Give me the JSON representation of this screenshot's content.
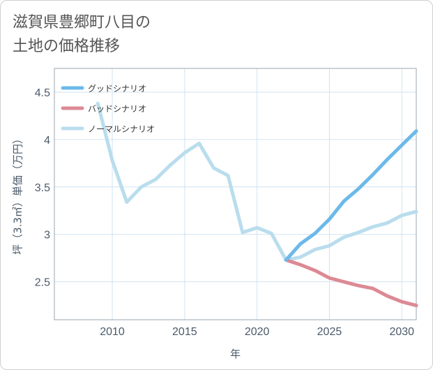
{
  "title": {
    "line1": "滋賀県豊郷町八目の",
    "line2": "土地の価格推移"
  },
  "chart_data": {
    "type": "line",
    "xlabel": "年",
    "ylabel": "坪（3.3㎡）単価（万円）",
    "xlim": [
      2006,
      2031
    ],
    "ylim": [
      2.1,
      4.75
    ],
    "x_ticks": [
      2010,
      2015,
      2020,
      2025,
      2030
    ],
    "y_ticks": [
      2.5,
      3,
      3.5,
      4,
      4.5
    ],
    "x_tick_labels": [
      "2010",
      "2015",
      "2020",
      "2025",
      "2030"
    ],
    "y_tick_labels": [
      "2.5",
      "3",
      "3.5",
      "4",
      "4.5"
    ],
    "grid": true,
    "legend_position": "top-left",
    "series": [
      {
        "name": "グッドシナリオ",
        "color": "#6cb9ea",
        "x": [
          2022,
          2023,
          2024,
          2025,
          2026,
          2027,
          2028,
          2029,
          2030,
          2031
        ],
        "values": [
          2.73,
          2.9,
          3.01,
          3.16,
          3.35,
          3.48,
          3.63,
          3.79,
          3.94,
          4.09
        ]
      },
      {
        "name": "バッドシナリオ",
        "color": "#dc8a94",
        "x": [
          2022,
          2023,
          2024,
          2025,
          2026,
          2027,
          2028,
          2029,
          2030,
          2031
        ],
        "values": [
          2.73,
          2.68,
          2.62,
          2.54,
          2.5,
          2.46,
          2.43,
          2.35,
          2.29,
          2.25
        ]
      },
      {
        "name": "ノーマルシナリオ",
        "color": "#b9dded",
        "x": [
          2009,
          2010,
          2011,
          2012,
          2013,
          2014,
          2015,
          2016,
          2017,
          2018,
          2019,
          2020,
          2021,
          2022,
          2023,
          2024,
          2025,
          2026,
          2027,
          2028,
          2029,
          2030,
          2031
        ],
        "values": [
          4.38,
          3.78,
          3.34,
          3.5,
          3.58,
          3.73,
          3.86,
          3.96,
          3.7,
          3.62,
          3.02,
          3.07,
          3.01,
          2.73,
          2.76,
          2.84,
          2.88,
          2.97,
          3.02,
          3.08,
          3.12,
          3.2,
          3.24
        ]
      }
    ]
  }
}
